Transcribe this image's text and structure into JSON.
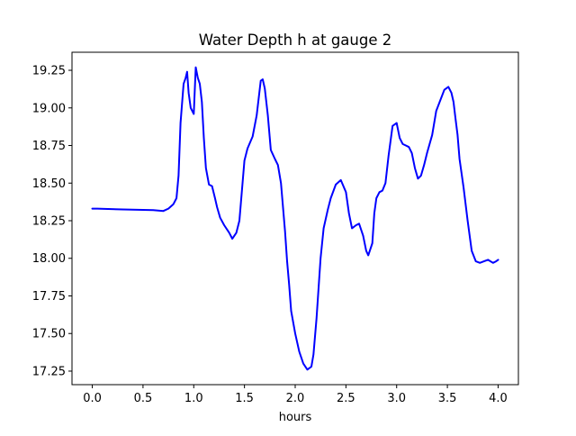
{
  "chart_data": {
    "type": "line",
    "title": "Water Depth h at gauge 2",
    "xlabel": "hours",
    "ylabel": "",
    "xlim": [
      -0.2,
      4.2
    ],
    "ylim": [
      17.16,
      19.37
    ],
    "xticks": [
      0.0,
      0.5,
      1.0,
      1.5,
      2.0,
      2.5,
      3.0,
      3.5,
      4.0
    ],
    "xtick_labels": [
      "0.0",
      "0.5",
      "1.0",
      "1.5",
      "2.0",
      "2.5",
      "3.0",
      "3.5",
      "4.0"
    ],
    "yticks": [
      17.25,
      17.5,
      17.75,
      18.0,
      18.25,
      18.5,
      18.75,
      19.0,
      19.25
    ],
    "ytick_labels": [
      "17.25",
      "17.50",
      "17.75",
      "18.00",
      "18.25",
      "18.50",
      "18.75",
      "19.00",
      "19.25"
    ],
    "grid": false,
    "series": [
      {
        "color": "#0000ff",
        "x": [
          0.0,
          0.05,
          0.3,
          0.6,
          0.7,
          0.75,
          0.8,
          0.83,
          0.85,
          0.87,
          0.9,
          0.92,
          0.935,
          0.95,
          0.97,
          1.0,
          1.02,
          1.04,
          1.06,
          1.08,
          1.1,
          1.12,
          1.15,
          1.18,
          1.21,
          1.23,
          1.26,
          1.3,
          1.35,
          1.38,
          1.42,
          1.45,
          1.5,
          1.53,
          1.58,
          1.62,
          1.66,
          1.68,
          1.7,
          1.73,
          1.76,
          1.8,
          1.83,
          1.86,
          1.9,
          1.92,
          1.94,
          1.96,
          2.0,
          2.04,
          2.08,
          2.12,
          2.16,
          2.18,
          2.21,
          2.25,
          2.28,
          2.32,
          2.35,
          2.4,
          2.45,
          2.5,
          2.53,
          2.56,
          2.6,
          2.63,
          2.67,
          2.7,
          2.72,
          2.76,
          2.78,
          2.8,
          2.83,
          2.86,
          2.89,
          2.92,
          2.96,
          3.0,
          3.03,
          3.06,
          3.09,
          3.12,
          3.15,
          3.18,
          3.21,
          3.24,
          3.27,
          3.3,
          3.35,
          3.39,
          3.43,
          3.47,
          3.51,
          3.54,
          3.56,
          3.58,
          3.6,
          3.62,
          3.66,
          3.7,
          3.74,
          3.78,
          3.82,
          3.86,
          3.9,
          3.95,
          3.98,
          4.0
        ],
        "values": [
          18.33,
          18.33,
          18.325,
          18.32,
          18.315,
          18.33,
          18.36,
          18.4,
          18.55,
          18.9,
          19.16,
          19.2,
          19.24,
          19.1,
          19.0,
          18.96,
          19.27,
          19.2,
          19.16,
          19.04,
          18.8,
          18.6,
          18.49,
          18.48,
          18.4,
          18.34,
          18.27,
          18.22,
          18.17,
          18.13,
          18.17,
          18.25,
          18.65,
          18.73,
          18.81,
          18.95,
          19.18,
          19.19,
          19.13,
          18.95,
          18.72,
          18.66,
          18.62,
          18.5,
          18.18,
          17.98,
          17.83,
          17.65,
          17.5,
          17.38,
          17.3,
          17.26,
          17.28,
          17.36,
          17.6,
          18.0,
          18.2,
          18.32,
          18.4,
          18.49,
          18.52,
          18.44,
          18.3,
          18.2,
          18.22,
          18.23,
          18.15,
          18.05,
          18.02,
          18.1,
          18.3,
          18.4,
          18.44,
          18.45,
          18.5,
          18.68,
          18.88,
          18.9,
          18.8,
          18.76,
          18.75,
          18.74,
          18.7,
          18.6,
          18.53,
          18.55,
          18.62,
          18.7,
          18.82,
          18.98,
          19.05,
          19.12,
          19.14,
          19.1,
          19.04,
          18.93,
          18.82,
          18.66,
          18.47,
          18.25,
          18.05,
          17.98,
          17.97,
          17.98,
          17.99,
          17.97,
          17.98,
          17.99
        ]
      }
    ]
  }
}
